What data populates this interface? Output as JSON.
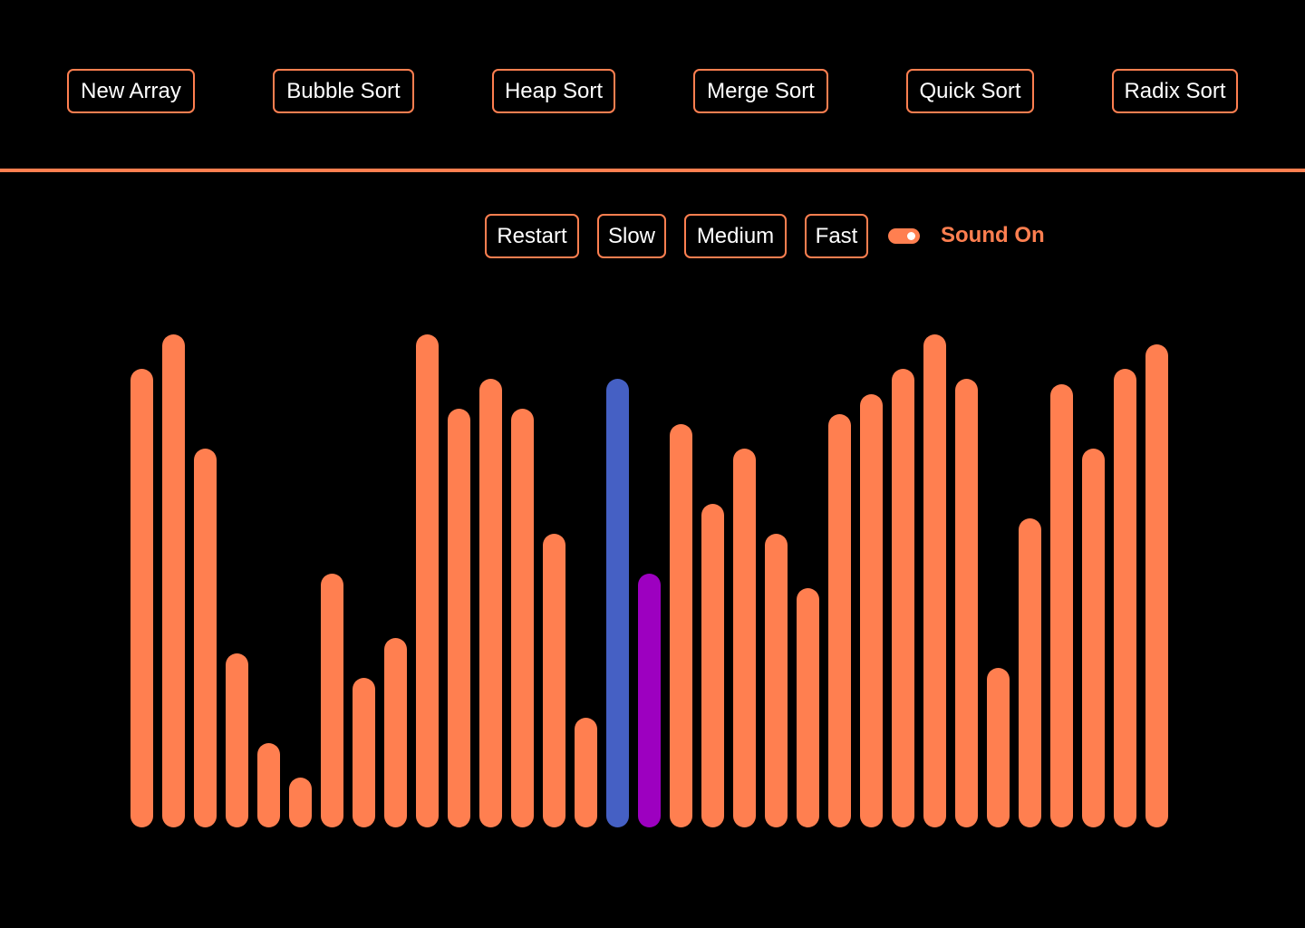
{
  "toolbar": {
    "new_array": "New Array",
    "bubble_sort": "Bubble Sort",
    "heap_sort": "Heap Sort",
    "merge_sort": "Merge Sort",
    "quick_sort": "Quick Sort",
    "radix_sort": "Radix Sort"
  },
  "controls": {
    "restart": "Restart",
    "slow": "Slow",
    "medium": "Medium",
    "fast": "Fast",
    "sound_label": "Sound On",
    "sound_on": true
  },
  "colors": {
    "background": "#000000",
    "accent": "#FF7F50",
    "comparing": "#4560C4",
    "swapping": "#9D00C0",
    "button_text": "#FFFFFF"
  },
  "chart_data": {
    "type": "bar",
    "values": [
      92,
      99,
      76,
      35,
      17,
      10,
      51,
      30,
      38,
      99,
      84,
      90,
      84,
      59,
      22,
      90,
      51,
      81,
      65,
      76,
      59,
      48,
      83,
      87,
      92,
      99,
      90,
      32,
      62,
      89,
      76,
      92,
      97
    ],
    "max_value": 100,
    "highlights": [
      {
        "index": 15,
        "state": "comparing"
      },
      {
        "index": 16,
        "state": "swapping"
      }
    ]
  }
}
